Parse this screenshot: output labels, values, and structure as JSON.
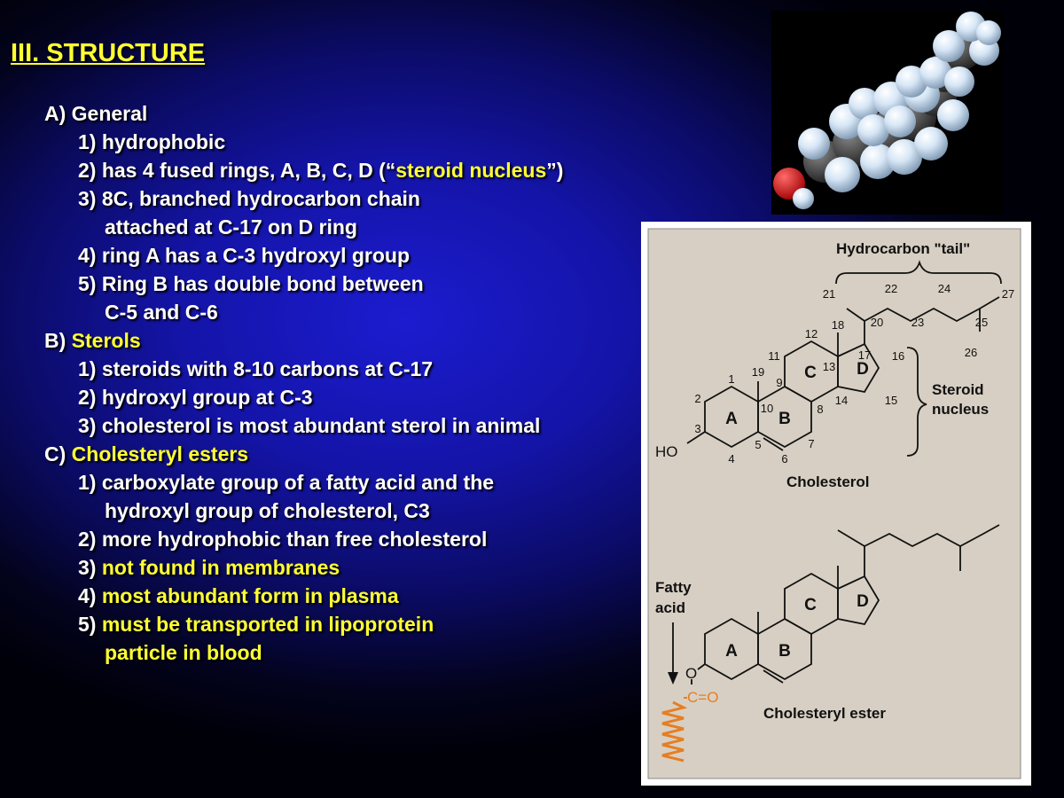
{
  "slide": {
    "title": "III. STRUCTURE",
    "outline": [
      {
        "parts": [
          {
            "text": "A) General"
          }
        ]
      },
      {
        "parts": [
          {
            "text": "1) hydrophobic"
          }
        ]
      },
      {
        "parts": [
          {
            "text": "2) has 4 fused rings, A, B, C, D (“"
          },
          {
            "text": "steroid nucleus",
            "yellow": true
          },
          {
            "text": "”)"
          }
        ]
      },
      {
        "parts": [
          {
            "text": "3) 8C, branched hydrocarbon chain"
          }
        ]
      },
      {
        "parts": [
          {
            "text": "attached at C-17 on D ring"
          }
        ]
      },
      {
        "parts": [
          {
            "text": "4) ring A has a C-3 hydroxyl group"
          }
        ]
      },
      {
        "parts": [
          {
            "text": "5) Ring B has double bond between"
          }
        ]
      },
      {
        "parts": [
          {
            "text": "C-5 and C-6"
          }
        ]
      },
      {
        "parts": [
          {
            "text": "B) "
          },
          {
            "text": "Sterols",
            "yellow": true
          }
        ]
      },
      {
        "parts": [
          {
            "text": "1) steroids with 8-10 carbons at C-17"
          }
        ]
      },
      {
        "parts": [
          {
            "text": "2) hydroxyl group at C-3"
          }
        ]
      },
      {
        "parts": [
          {
            "text": "3) cholesterol is most abundant sterol in animal"
          }
        ]
      },
      {
        "parts": [
          {
            "text": "C) "
          },
          {
            "text": "Cholesteryl esters",
            "yellow": true
          }
        ]
      },
      {
        "parts": [
          {
            "text": "1) carboxylate group of a fatty acid and the"
          }
        ]
      },
      {
        "parts": [
          {
            "text": "hydroxyl group of cholesterol, C3"
          }
        ]
      },
      {
        "parts": [
          {
            "text": "2) more hydrophobic than free cholesterol"
          }
        ]
      },
      {
        "parts": [
          {
            "text": "3) "
          },
          {
            "text": "not found in membranes",
            "yellow": true
          }
        ]
      },
      {
        "parts": [
          {
            "text": "4) "
          },
          {
            "text": "most abundant form in plasma",
            "yellow": true
          }
        ]
      },
      {
        "parts": [
          {
            "text": "5) "
          },
          {
            "text": "must be transported in lipoprotein",
            "yellow": true
          }
        ]
      },
      {
        "parts": [
          {
            "text": "particle in blood",
            "yellow": true
          }
        ]
      }
    ]
  },
  "diagram": {
    "tail_label": "Hydrocarbon \"tail\"",
    "nucleus_label_1": "Steroid",
    "nucleus_label_2": "nucleus",
    "cholesterol_label": "Cholesterol",
    "ester_label": "Cholesteryl ester",
    "fatty_acid_label_1": "Fatty",
    "fatty_acid_label_2": "acid",
    "ho": "HO",
    "o": "O",
    "carbonyl": "C=O",
    "ring_a": "A",
    "ring_b": "B",
    "ring_c": "C",
    "ring_d": "D",
    "numbers": {
      "n1": "1",
      "n2": "2",
      "n3": "3",
      "n4": "4",
      "n5": "5",
      "n6": "6",
      "n7": "7",
      "n8": "8",
      "n9": "9",
      "n10": "10",
      "n11": "11",
      "n12": "12",
      "n13": "13",
      "n14": "14",
      "n15": "15",
      "n16": "16",
      "n17": "17",
      "n18": "18",
      "n19": "19",
      "n20": "20",
      "n21": "21",
      "n22": "22",
      "n23": "23",
      "n24": "24",
      "n25": "25",
      "n26": "26",
      "n27": "27"
    }
  },
  "colors": {
    "accent_yellow": "#ffff33",
    "text_white": "#ffffff",
    "diagram_panel": "#d7cfc3",
    "carbonyl_orange": "#e67e22",
    "oxygen_red": "#dd1111"
  }
}
